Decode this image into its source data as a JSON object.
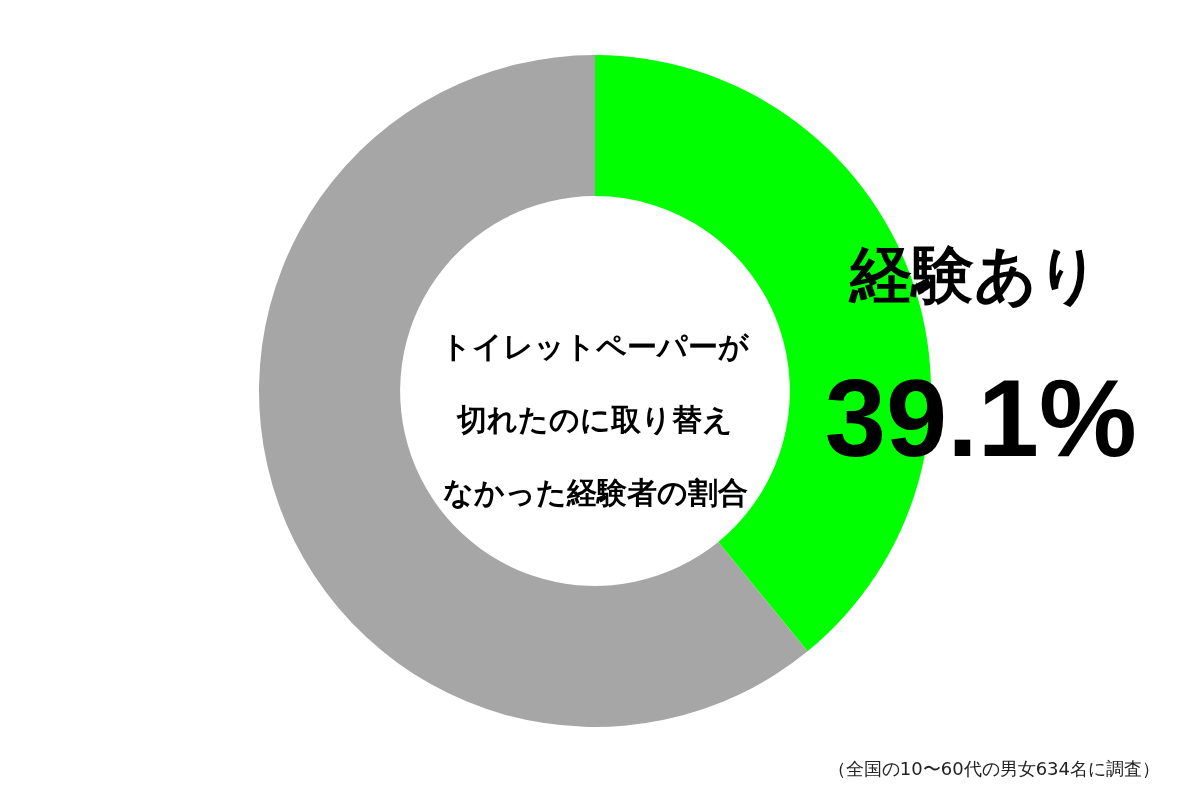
{
  "chart_data": {
    "type": "donut",
    "title": "トイレットペーパーが切れたのに取り替えなかった経験者の割合",
    "categories": [
      "経験あり",
      null
    ],
    "values": [
      39.1,
      60.9
    ],
    "colors": [
      "#00ff00",
      "#a6a6a6"
    ],
    "value_labels": [
      "39.1%",
      null
    ],
    "annotations": [
      "（全国の10〜60代の男女634名に調査）"
    ]
  }
}
